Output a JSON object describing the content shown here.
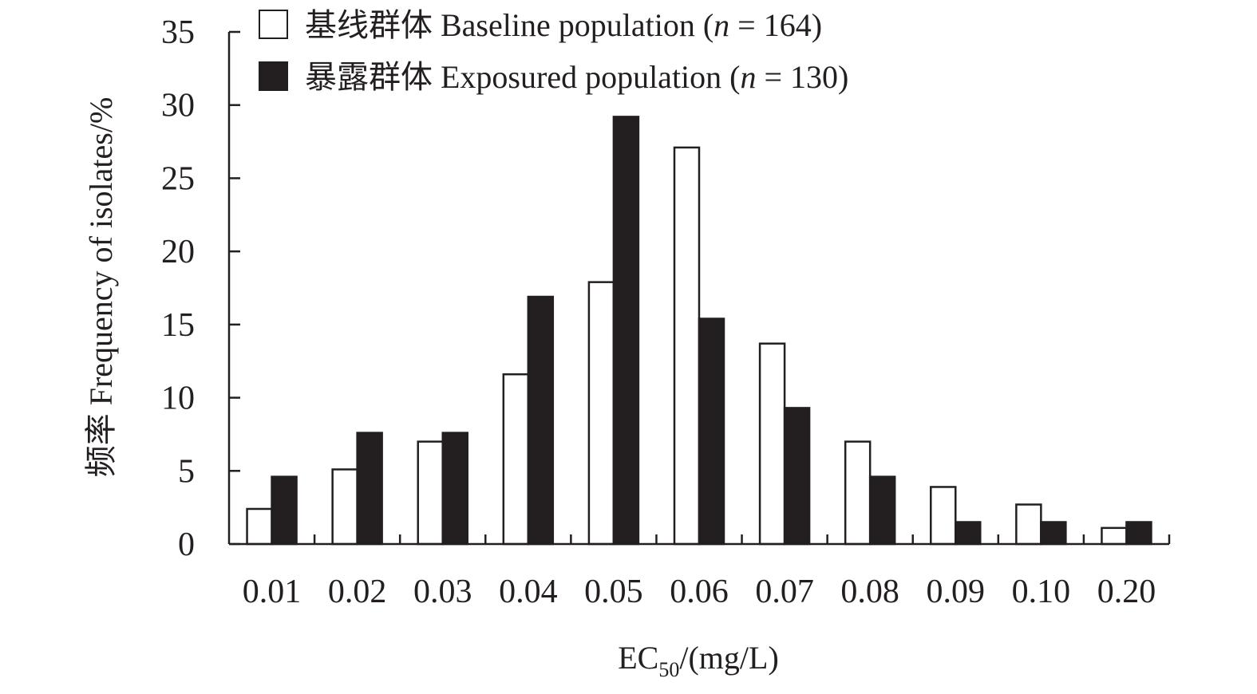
{
  "chart_data": {
    "type": "bar",
    "categories": [
      "0.01",
      "0.02",
      "0.03",
      "0.04",
      "0.05",
      "0.06",
      "0.07",
      "0.08",
      "0.09",
      "0.10",
      "0.20"
    ],
    "series": [
      {
        "name": "基线群体 Baseline population (n = 164)",
        "name_parts": {
          "prefix": "基线群体 Baseline population (",
          "n": "n",
          "suffix": " = 164)"
        },
        "fill": "#ffffff",
        "values": [
          2.4,
          5.1,
          7.0,
          11.6,
          17.9,
          27.1,
          13.7,
          7.0,
          3.9,
          2.7,
          1.1
        ]
      },
      {
        "name": "暴露群体 Exposured population (n = 130)",
        "name_parts": {
          "prefix": "暴露群体 Exposured population (",
          "n": "n",
          "suffix": " = 130)"
        },
        "fill": "#231f20",
        "values": [
          4.6,
          7.6,
          7.6,
          16.9,
          29.2,
          15.4,
          9.3,
          4.6,
          1.5,
          1.5,
          1.5
        ]
      }
    ],
    "ylim": [
      0,
      35
    ],
    "yticks": [
      "0",
      "5",
      "10",
      "15",
      "20",
      "25",
      "30",
      "35"
    ],
    "ylabel": "频率 Frequency of isolates/%",
    "xlabel": {
      "main": "EC",
      "sub": "50",
      "rest": "/(mg/L)"
    },
    "legend_position": "top-left",
    "grid": false,
    "colors": {
      "axis": "#231f20",
      "baseline_bar": "#ffffff",
      "exposed_bar": "#231f20"
    }
  }
}
